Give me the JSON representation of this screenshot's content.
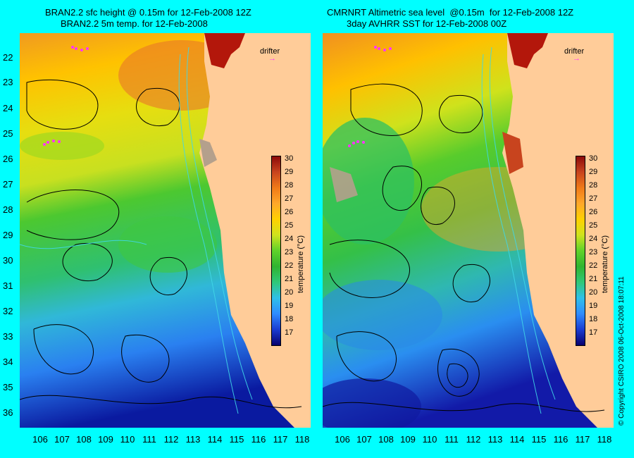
{
  "panels": [
    {
      "title_line1": "BRAN2.2 sfc height @ 0.15m for 12-Feb-2008 12Z",
      "title_line2": "BRAN2.2 5m temp. for 12-Feb-2008",
      "drifter_label": "drifter",
      "colorbar_label": "temperature (°C)"
    },
    {
      "title_line1": "CMRNRT Altimetric sea level  @0.15m  for 12-Feb-2008 12Z",
      "title_line2": "3day AVHRR SST for 12-Feb-2008 00Z",
      "drifter_label": "drifter",
      "colorbar_label": "temperature (°C)"
    }
  ],
  "axes": {
    "latitude_ticks": [
      "22",
      "23",
      "24",
      "25",
      "26",
      "27",
      "28",
      "29",
      "30",
      "31",
      "32",
      "33",
      "34",
      "35",
      "36"
    ],
    "longitude_ticks": [
      "106",
      "107",
      "108",
      "109",
      "110",
      "111",
      "112",
      "113",
      "114",
      "115",
      "116",
      "117",
      "118"
    ]
  },
  "colorbar": {
    "min": 16,
    "max": 30,
    "ticks": [
      "30",
      "29",
      "28",
      "27",
      "26",
      "25",
      "24",
      "23",
      "22",
      "21",
      "20",
      "19",
      "18",
      "17"
    ],
    "colors": [
      "#08006e",
      "#1a3cd2",
      "#2f8cff",
      "#2fc0e8",
      "#30c878",
      "#30b430",
      "#5fd22a",
      "#cfe31e",
      "#ffd100",
      "#ffa82a",
      "#f07a18",
      "#c8441e",
      "#8c0a0a"
    ]
  },
  "copyright": "© Copyright CSIRO 2008    06-Oct-2008 18:07:11",
  "colors": {
    "background": "#00ffff",
    "land": "#ffcc99",
    "drifter": "#ff33ff"
  }
}
